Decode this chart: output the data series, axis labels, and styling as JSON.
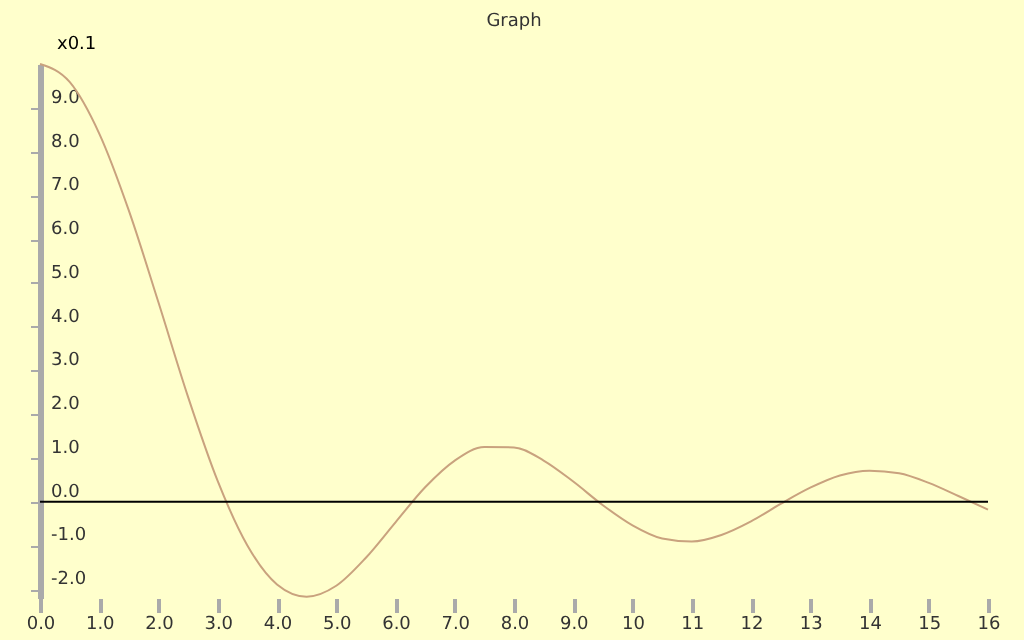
{
  "chart_data": {
    "type": "line",
    "title": "Graph",
    "ylabel": "x0.1",
    "x": [
      0,
      0.5,
      1,
      1.5,
      2,
      2.5,
      3,
      3.5,
      4,
      4.5,
      5,
      5.5,
      6,
      6.5,
      7,
      7.5,
      8,
      8.5,
      9,
      9.5,
      10,
      10.5,
      11,
      11.5,
      12,
      12.5,
      13,
      13.5,
      14,
      14.5,
      15,
      15.5,
      16
    ],
    "series": [
      {
        "color": "#c9a27e",
        "values": [
          10,
          9.59,
          8.41,
          6.65,
          4.55,
          2.39,
          0.47,
          -1.0,
          -1.89,
          -2.17,
          -1.92,
          -1.28,
          -0.47,
          0.33,
          0.94,
          1.25,
          1.24,
          0.94,
          0.46,
          -0.08,
          -0.54,
          -0.84,
          -0.91,
          -0.76,
          -0.45,
          -0.05,
          0.32,
          0.6,
          0.71,
          0.65,
          0.43,
          0.13,
          -0.18
        ]
      }
    ],
    "xlim": [
      0,
      16
    ],
    "ylim": [
      -2.2,
      10
    ],
    "xticks": [
      {
        "value": 0,
        "label": "0.0"
      },
      {
        "value": 1,
        "label": "1.0"
      },
      {
        "value": 2,
        "label": "2.0"
      },
      {
        "value": 3,
        "label": "3.0"
      },
      {
        "value": 4,
        "label": "4.0"
      },
      {
        "value": 5,
        "label": "5.0"
      },
      {
        "value": 6,
        "label": "6.0"
      },
      {
        "value": 7,
        "label": "7.0"
      },
      {
        "value": 8,
        "label": "8.0"
      },
      {
        "value": 9,
        "label": "9.0"
      },
      10,
      11,
      12,
      13,
      14,
      15,
      16
    ],
    "yticks": [
      {
        "value": -2,
        "label": "-2.0"
      },
      {
        "value": -1,
        "label": "-1.0"
      },
      {
        "value": 0,
        "label": "0.0"
      },
      {
        "value": 1,
        "label": "1.0"
      },
      {
        "value": 2,
        "label": "2.0"
      },
      {
        "value": 3,
        "label": "3.0"
      },
      {
        "value": 4,
        "label": "4.0"
      },
      {
        "value": 5,
        "label": "5.0"
      },
      {
        "value": 6,
        "label": "6.0"
      },
      {
        "value": 7,
        "label": "7.0"
      },
      {
        "value": 8,
        "label": "8.0"
      },
      {
        "value": 9,
        "label": "9.0"
      }
    ],
    "ref_lines": [
      {
        "axis": "y",
        "value": 0,
        "color": "#000000"
      }
    ],
    "grid": false,
    "marker": "none",
    "line_style": "solid"
  }
}
